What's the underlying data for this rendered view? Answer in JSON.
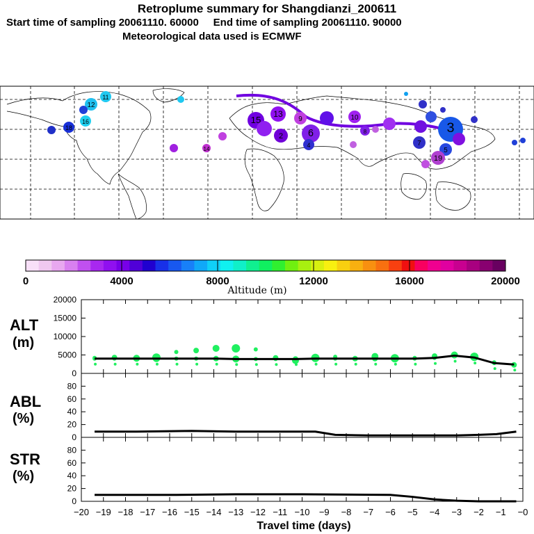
{
  "header": {
    "title": "Retroplume summary for Shangdianzi_200611",
    "line2": "Start time of sampling 20061110. 60000     End time of sampling 20061110. 90000",
    "line3": "Meteorological data used is ECMWF"
  },
  "colorbar": {
    "axis_label": "Altitude (m)",
    "ticks": [
      "0",
      "4000",
      "8000",
      "12000",
      "16000",
      "20000"
    ],
    "colors": [
      "#f8e0f8",
      "#f0c8f0",
      "#e8a8f0",
      "#d880f0",
      "#c050f0",
      "#a828f0",
      "#9010f0",
      "#7800e8",
      "#5000d8",
      "#2000d0",
      "#1830e8",
      "#1858f0",
      "#1880f8",
      "#10a8f8",
      "#10d0f8",
      "#10f0f0",
      "#10f0c8",
      "#10f090",
      "#10f060",
      "#30f030",
      "#70f010",
      "#a8f010",
      "#d8f010",
      "#f8f010",
      "#f8d010",
      "#f8b010",
      "#f89010",
      "#f87010",
      "#f84010",
      "#f01010",
      "#f80060",
      "#f00090",
      "#e000a0",
      "#c80090",
      "#a80080",
      "#880070",
      "#680060"
    ]
  },
  "map": {
    "points": [
      {
        "label": "11",
        "color": "#20c8f0"
      },
      {
        "label": "12",
        "color": "#20c0f0"
      },
      {
        "label": "16",
        "color": "#20d0f0"
      },
      {
        "label": "15",
        "color": "#7000e0"
      },
      {
        "label": "13",
        "color": "#9010f0"
      },
      {
        "label": "6",
        "color": "#8020e8"
      },
      {
        "label": "2",
        "color": "#7000d8"
      },
      {
        "label": "3",
        "color": "#1858e8"
      },
      {
        "label": "4",
        "color": "#3030d0"
      },
      {
        "label": "5",
        "color": "#2848e0"
      },
      {
        "label": "7",
        "color": "#3030c8"
      },
      {
        "label": "8",
        "color": "#8020e8"
      },
      {
        "label": "9",
        "color": "#c040e0"
      },
      {
        "label": "10",
        "color": "#a020f0"
      },
      {
        "label": "14",
        "color": "#c030d0"
      },
      {
        "label": "18",
        "color": "#1830d8"
      },
      {
        "label": "19",
        "color": "#b040d0"
      }
    ]
  },
  "chart_data": [
    {
      "type": "scatter",
      "panel": "ALT",
      "ylabel": "ALT\n(m)",
      "ylabel_line1": "ALT",
      "ylabel_line2": "(m)",
      "ylim": [
        0,
        20000
      ],
      "yticks": [
        "20000",
        "15000",
        "10000",
        "5000",
        "0"
      ],
      "xlim": [
        -20,
        0
      ],
      "x": [
        -19.4,
        -18.5,
        -17.5,
        -16.6,
        -15.7,
        -14.8,
        -13.9,
        -13.0,
        -12.1,
        -11.2,
        -10.3,
        -9.4,
        -8.5,
        -7.6,
        -6.7,
        -5.8,
        -4.9,
        -4.0,
        -3.1,
        -2.2,
        -1.3,
        -0.4
      ],
      "values": [
        4000,
        4000,
        4000,
        4000,
        4000,
        4000,
        4000,
        3900,
        3900,
        3900,
        3900,
        4000,
        4000,
        4000,
        4000,
        4000,
        4000,
        4200,
        4800,
        4300,
        2800,
        2400
      ],
      "scatter_altitudes": [
        4200,
        4300,
        4100,
        4300,
        5800,
        6200,
        6800,
        6800,
        6500,
        4200,
        3500,
        4200,
        4500,
        4000,
        4600,
        4100,
        4200,
        4700,
        5000,
        4500,
        3000,
        2300
      ],
      "scatter_color": "#20f060",
      "median_color": "#000000"
    },
    {
      "type": "line",
      "panel": "ABL",
      "ylabel_line1": "ABL",
      "ylabel_line2": "(%)",
      "ylim": [
        0,
        100
      ],
      "yticks": [
        "80",
        "60",
        "40",
        "20",
        "0"
      ],
      "x": [
        -19.4,
        -17.5,
        -15.0,
        -13.0,
        -11.0,
        -9.4,
        -8.5,
        -7.0,
        -5.0,
        -3.0,
        -2.0,
        -1.2,
        -0.3
      ],
      "values": [
        9,
        9,
        10,
        9,
        9,
        9,
        4,
        3,
        3,
        3,
        4,
        5,
        9
      ]
    },
    {
      "type": "line",
      "panel": "STR",
      "ylabel_line1": "STR",
      "ylabel_line2": "(%)",
      "ylim": [
        0,
        100
      ],
      "yticks": [
        "80",
        "60",
        "40",
        "20",
        "0"
      ],
      "x": [
        -19.4,
        -16.0,
        -13.0,
        -10.0,
        -6.0,
        -5.0,
        -4.0,
        -3.0,
        -2.0,
        -1.0,
        -0.3
      ],
      "values": [
        10,
        10,
        11,
        11,
        10,
        7,
        3,
        1,
        0,
        0,
        0
      ],
      "xlabel": "Travel time (days)",
      "xticks": [
        "−20",
        "−19",
        "−18",
        "−17",
        "−16",
        "−15",
        "−14",
        "−13",
        "−12",
        "−11",
        "−10",
        "−9",
        "−8",
        "−7",
        "−6",
        "−5",
        "−4",
        "−3",
        "−2",
        "−1",
        "−0"
      ]
    }
  ]
}
